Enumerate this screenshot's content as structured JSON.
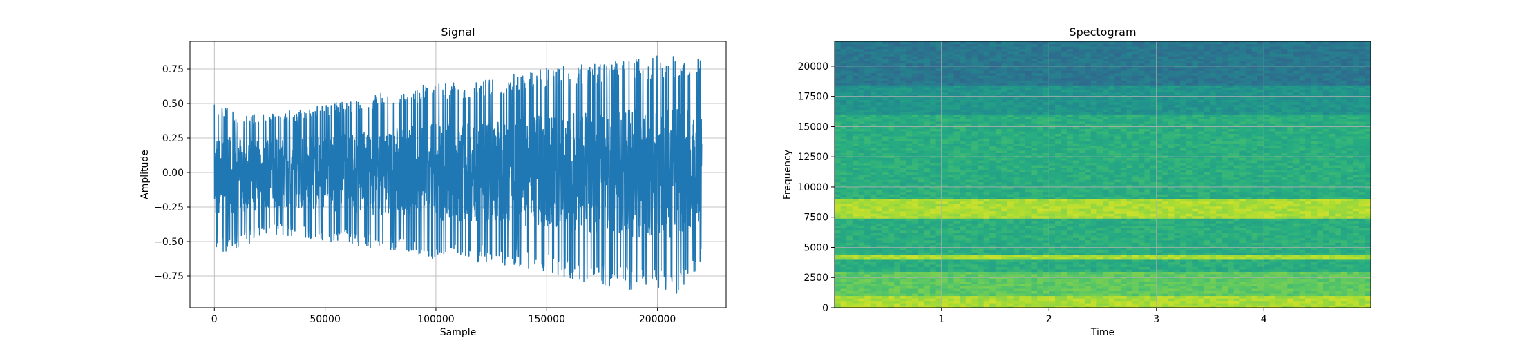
{
  "chart_data": [
    {
      "type": "line",
      "title": "Signal",
      "xlabel": "Sample",
      "ylabel": "Amplitude",
      "xlim": [
        -11000,
        231000
      ],
      "ylim": [
        -0.98,
        0.95
      ],
      "xticks": [
        0,
        50000,
        100000,
        150000,
        200000
      ],
      "xtick_labels": [
        "0",
        "50000",
        "100000",
        "150000",
        "200000"
      ],
      "yticks": [
        -0.75,
        -0.5,
        -0.25,
        0.0,
        0.25,
        0.5,
        0.75
      ],
      "ytick_labels": [
        "−0.75",
        "−0.50",
        "−0.25",
        "0.00",
        "0.25",
        "0.50",
        "0.75"
      ],
      "grid": true,
      "line_color": "#1f77b4",
      "series": [
        {
          "x": [
            0,
            10000,
            20000,
            30000,
            40000,
            50000,
            60000,
            70000,
            80000,
            90000,
            100000,
            110000,
            120000,
            130000,
            140000,
            150000,
            160000,
            170000,
            180000,
            190000,
            200000,
            210000,
            220000
          ],
          "upper_envelope": [
            0.5,
            0.45,
            0.43,
            0.44,
            0.47,
            0.5,
            0.52,
            0.56,
            0.6,
            0.62,
            0.65,
            0.66,
            0.68,
            0.7,
            0.73,
            0.76,
            0.78,
            0.78,
            0.8,
            0.83,
            0.85,
            0.85,
            0.82
          ],
          "lower_envelope": [
            -0.6,
            -0.55,
            -0.5,
            -0.45,
            -0.48,
            -0.5,
            -0.52,
            -0.55,
            -0.57,
            -0.6,
            -0.63,
            -0.64,
            -0.65,
            -0.67,
            -0.7,
            -0.73,
            -0.77,
            -0.8,
            -0.84,
            -0.85,
            -0.85,
            -0.88,
            -0.65
          ]
        }
      ]
    },
    {
      "type": "heatmap",
      "title": "Spectogram",
      "xlabel": "Time",
      "ylabel": "Frequency",
      "xlim": [
        0.005,
        4.995
      ],
      "ylim": [
        0,
        22050
      ],
      "xticks": [
        1,
        2,
        3,
        4
      ],
      "xtick_labels": [
        "1",
        "2",
        "3",
        "4"
      ],
      "yticks": [
        0,
        2500,
        5000,
        7500,
        10000,
        12500,
        15000,
        17500,
        20000
      ],
      "ytick_labels": [
        "0",
        "2500",
        "5000",
        "7500",
        "10000",
        "12500",
        "15000",
        "17500",
        "20000"
      ],
      "grid": true,
      "colormap": "viridis",
      "bands": [
        {
          "freq_range": [
            0,
            1000
          ],
          "level": "high"
        },
        {
          "freq_range": [
            1000,
            3000
          ],
          "level": "medium-high"
        },
        {
          "freq_range": [
            4000,
            4500
          ],
          "level": "high"
        },
        {
          "freq_range": [
            7500,
            9000
          ],
          "level": "high"
        },
        {
          "freq_range": [
            3000,
            16000
          ],
          "level": "medium"
        },
        {
          "freq_range": [
            16000,
            18500
          ],
          "level": "low-medium"
        },
        {
          "freq_range": [
            18500,
            22050
          ],
          "level": "low"
        }
      ]
    }
  ]
}
